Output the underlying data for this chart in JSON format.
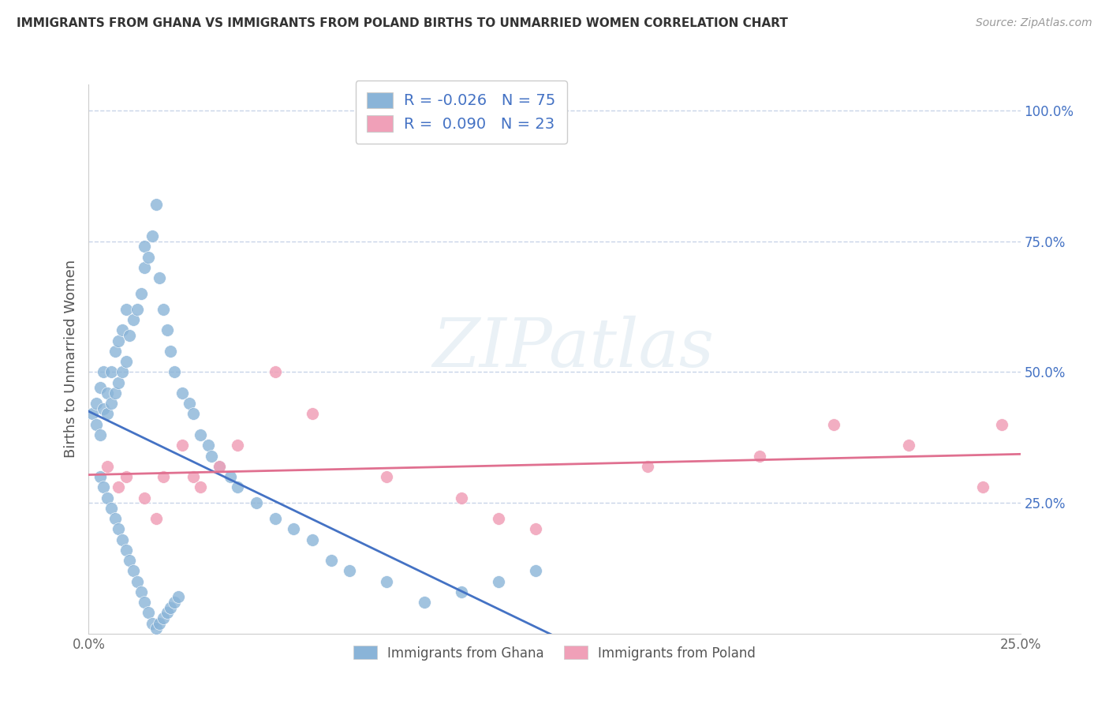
{
  "title": "IMMIGRANTS FROM GHANA VS IMMIGRANTS FROM POLAND BIRTHS TO UNMARRIED WOMEN CORRELATION CHART",
  "source": "Source: ZipAtlas.com",
  "ylabel": "Births to Unmarried Women",
  "xlim": [
    0.0,
    0.25
  ],
  "ylim": [
    0.0,
    1.05
  ],
  "ghana_color": "#8ab4d8",
  "ghana_line_color": "#4472c4",
  "ghana_line_dash": false,
  "poland_color": "#f0a0b8",
  "poland_line_color": "#e07090",
  "poland_line_dash": false,
  "watermark_text": "ZIPatlas",
  "background_color": "#ffffff",
  "grid_color": "#c8d4e8",
  "right_tick_color": "#4472c4",
  "ghana_x": [
    0.001,
    0.002,
    0.002,
    0.003,
    0.003,
    0.004,
    0.004,
    0.005,
    0.005,
    0.006,
    0.006,
    0.007,
    0.007,
    0.008,
    0.008,
    0.009,
    0.009,
    0.01,
    0.01,
    0.011,
    0.012,
    0.013,
    0.014,
    0.015,
    0.015,
    0.016,
    0.017,
    0.018,
    0.019,
    0.02,
    0.021,
    0.022,
    0.023,
    0.025,
    0.027,
    0.028,
    0.03,
    0.032,
    0.033,
    0.035,
    0.038,
    0.04,
    0.045,
    0.05,
    0.055,
    0.06,
    0.065,
    0.07,
    0.08,
    0.09,
    0.1,
    0.11,
    0.12,
    0.003,
    0.004,
    0.005,
    0.006,
    0.007,
    0.008,
    0.009,
    0.01,
    0.011,
    0.012,
    0.013,
    0.014,
    0.015,
    0.016,
    0.017,
    0.018,
    0.019,
    0.02,
    0.021,
    0.022,
    0.023,
    0.024
  ],
  "ghana_y": [
    0.42,
    0.4,
    0.44,
    0.38,
    0.47,
    0.43,
    0.5,
    0.42,
    0.46,
    0.44,
    0.5,
    0.46,
    0.54,
    0.48,
    0.56,
    0.5,
    0.58,
    0.52,
    0.62,
    0.57,
    0.6,
    0.62,
    0.65,
    0.7,
    0.74,
    0.72,
    0.76,
    0.82,
    0.68,
    0.62,
    0.58,
    0.54,
    0.5,
    0.46,
    0.44,
    0.42,
    0.38,
    0.36,
    0.34,
    0.32,
    0.3,
    0.28,
    0.25,
    0.22,
    0.2,
    0.18,
    0.14,
    0.12,
    0.1,
    0.06,
    0.08,
    0.1,
    0.12,
    0.3,
    0.28,
    0.26,
    0.24,
    0.22,
    0.2,
    0.18,
    0.16,
    0.14,
    0.12,
    0.1,
    0.08,
    0.06,
    0.04,
    0.02,
    0.01,
    0.02,
    0.03,
    0.04,
    0.05,
    0.06,
    0.07
  ],
  "poland_x": [
    0.005,
    0.008,
    0.01,
    0.015,
    0.018,
    0.02,
    0.025,
    0.028,
    0.03,
    0.035,
    0.04,
    0.05,
    0.06,
    0.08,
    0.1,
    0.11,
    0.12,
    0.15,
    0.18,
    0.2,
    0.22,
    0.24,
    0.245
  ],
  "poland_y": [
    0.32,
    0.28,
    0.3,
    0.26,
    0.22,
    0.3,
    0.36,
    0.3,
    0.28,
    0.32,
    0.36,
    0.5,
    0.42,
    0.3,
    0.26,
    0.22,
    0.2,
    0.32,
    0.34,
    0.4,
    0.36,
    0.28,
    0.4
  ]
}
